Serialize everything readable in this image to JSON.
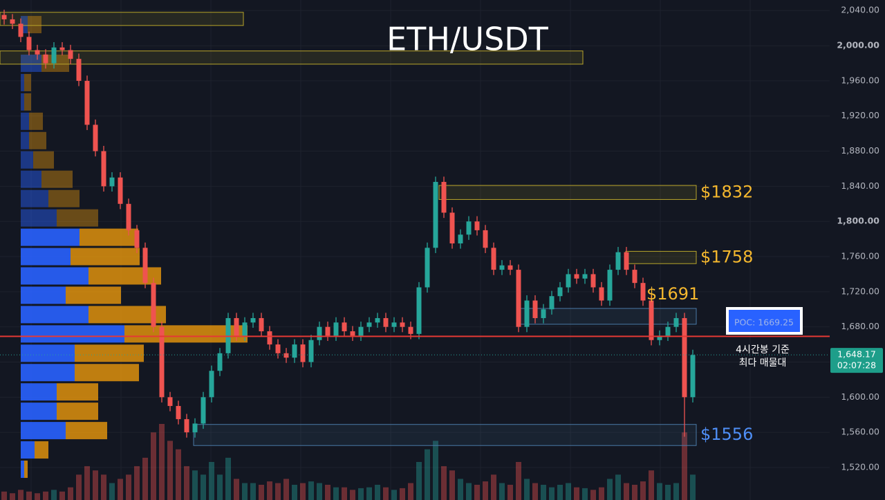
{
  "chart_data": {
    "type": "candlestick",
    "title": "ETH/USDT",
    "ylim": [
      1483,
      2052
    ],
    "yticks": [
      {
        "value": 1520,
        "label": "1,520.00"
      },
      {
        "value": 1560,
        "label": "1,560.00"
      },
      {
        "value": 1600,
        "label": "1,600.00"
      },
      {
        "value": 1640,
        "label": "1,640.00"
      },
      {
        "value": 1680,
        "label": "1,680.00"
      },
      {
        "value": 1720,
        "label": "1,720.00"
      },
      {
        "value": 1760,
        "label": "1,760.00"
      },
      {
        "value": 1800,
        "label": "1,800.00"
      },
      {
        "value": 1840,
        "label": "1,840.00"
      },
      {
        "value": 1880,
        "label": "1,880.00"
      },
      {
        "value": 1920,
        "label": "1,920.00"
      },
      {
        "value": 1960,
        "label": "1,960.00"
      },
      {
        "value": 2000,
        "label": "2,000.00"
      },
      {
        "value": 2040,
        "label": "2,040.00"
      }
    ],
    "grid": true,
    "up_color": "#26a69a",
    "down_color": "#ef5350",
    "open": [
      2035,
      2030,
      2025,
      2010,
      1995,
      1990,
      1980,
      1998,
      1995,
      1985,
      1960,
      1910,
      1880,
      1840,
      1850,
      1820,
      1790,
      1770,
      1730,
      1680,
      1600,
      1590,
      1575,
      1560,
      1570,
      1600,
      1630,
      1650,
      1690,
      1670,
      1685,
      1690,
      1675,
      1660,
      1650,
      1645,
      1660,
      1640,
      1665,
      1680,
      1670,
      1685,
      1675,
      1670,
      1680,
      1685,
      1690,
      1680,
      1685,
      1680,
      1672,
      1725,
      1770,
      1845,
      1810,
      1775,
      1785,
      1800,
      1790,
      1770,
      1745,
      1750,
      1745,
      1680,
      1710,
      1690,
      1700,
      1715,
      1725,
      1740,
      1735,
      1740,
      1725,
      1710,
      1745,
      1765,
      1745,
      1730,
      1710,
      1665,
      1670,
      1680,
      1690,
      1600
    ],
    "high": [
      2041,
      2036,
      2031,
      2016,
      2001,
      1996,
      2004,
      2004,
      2001,
      1991,
      1966,
      1916,
      1886,
      1856,
      1856,
      1826,
      1796,
      1776,
      1736,
      1686,
      1606,
      1596,
      1581,
      1576,
      1606,
      1636,
      1656,
      1696,
      1696,
      1691,
      1696,
      1696,
      1681,
      1666,
      1656,
      1666,
      1666,
      1671,
      1686,
      1686,
      1691,
      1691,
      1681,
      1686,
      1691,
      1696,
      1696,
      1691,
      1691,
      1686,
      1731,
      1776,
      1851,
      1851,
      1816,
      1791,
      1806,
      1806,
      1796,
      1776,
      1756,
      1756,
      1751,
      1716,
      1716,
      1706,
      1721,
      1731,
      1746,
      1746,
      1746,
      1746,
      1731,
      1751,
      1771,
      1771,
      1751,
      1736,
      1716,
      1676,
      1686,
      1696,
      1696,
      1654
    ],
    "low": [
      2024,
      2019,
      2004,
      1989,
      1984,
      1974,
      1974,
      1989,
      1979,
      1954,
      1904,
      1874,
      1834,
      1834,
      1814,
      1784,
      1764,
      1724,
      1674,
      1594,
      1584,
      1569,
      1554,
      1554,
      1564,
      1594,
      1624,
      1644,
      1664,
      1664,
      1679,
      1669,
      1654,
      1644,
      1639,
      1639,
      1634,
      1634,
      1659,
      1664,
      1664,
      1669,
      1664,
      1664,
      1674,
      1679,
      1674,
      1674,
      1674,
      1666,
      1666,
      1719,
      1764,
      1804,
      1769,
      1769,
      1779,
      1784,
      1764,
      1739,
      1739,
      1739,
      1674,
      1674,
      1684,
      1684,
      1694,
      1709,
      1719,
      1729,
      1729,
      1719,
      1704,
      1704,
      1739,
      1739,
      1724,
      1704,
      1659,
      1659,
      1664,
      1674,
      1555,
      1594
    ],
    "close": [
      2030,
      2025,
      2010,
      1995,
      1990,
      1980,
      1998,
      1995,
      1985,
      1960,
      1910,
      1880,
      1840,
      1850,
      1820,
      1790,
      1770,
      1730,
      1680,
      1600,
      1590,
      1575,
      1560,
      1570,
      1600,
      1630,
      1650,
      1690,
      1670,
      1685,
      1690,
      1675,
      1660,
      1650,
      1645,
      1660,
      1640,
      1665,
      1680,
      1670,
      1685,
      1675,
      1670,
      1680,
      1685,
      1690,
      1680,
      1685,
      1680,
      1672,
      1725,
      1770,
      1845,
      1810,
      1775,
      1785,
      1800,
      1790,
      1770,
      1745,
      1750,
      1745,
      1680,
      1710,
      1690,
      1700,
      1715,
      1725,
      1740,
      1735,
      1740,
      1725,
      1710,
      1745,
      1765,
      1745,
      1730,
      1710,
      1665,
      1670,
      1680,
      1690,
      1600,
      1648
    ],
    "volume": [
      10,
      8,
      12,
      10,
      8,
      10,
      12,
      10,
      15,
      30,
      40,
      35,
      30,
      20,
      25,
      30,
      40,
      50,
      80,
      90,
      70,
      60,
      40,
      35,
      30,
      45,
      30,
      50,
      25,
      20,
      20,
      18,
      22,
      20,
      25,
      18,
      20,
      22,
      20,
      18,
      15,
      15,
      12,
      14,
      15,
      18,
      15,
      12,
      14,
      20,
      45,
      60,
      70,
      40,
      35,
      25,
      20,
      18,
      22,
      30,
      20,
      18,
      45,
      25,
      20,
      18,
      15,
      18,
      20,
      15,
      14,
      12,
      15,
      25,
      30,
      20,
      18,
      22,
      35,
      20,
      18,
      20,
      80,
      30
    ],
    "volume_profile": {
      "prices": [
        2024,
        1980,
        1958,
        1936,
        1914,
        1892,
        1870,
        1848,
        1826,
        1804,
        1782,
        1760,
        1738,
        1716,
        1694,
        1672,
        1650,
        1628,
        1606,
        1584,
        1562,
        1540,
        1518
      ],
      "buy": [
        10,
        30,
        5,
        5,
        12,
        12,
        18,
        30,
        40,
        52,
        85,
        72,
        98,
        65,
        98,
        150,
        78,
        78,
        52,
        52,
        65,
        20,
        5
      ],
      "sell": [
        20,
        40,
        10,
        10,
        20,
        25,
        30,
        45,
        45,
        60,
        85,
        100,
        105,
        80,
        112,
        178,
        100,
        93,
        60,
        60,
        60,
        20,
        5
      ],
      "buy_color": "#2962ff",
      "sell_color": "#f59e0b"
    },
    "zones": [
      {
        "low": 2023,
        "high": 2038
      },
      {
        "low": 1979,
        "high": 1994
      },
      {
        "label": "$1832",
        "low": 1825,
        "high": 1841
      },
      {
        "label": "$1758",
        "low": 1752,
        "high": 1766
      },
      {
        "label": "$1691",
        "low": 1683,
        "high": 1701
      },
      {
        "label": "$1556",
        "low": 1545,
        "high": 1569
      }
    ],
    "poc": {
      "value": 1669.25,
      "label": "POC: 1669.25"
    },
    "annotation": [
      "4시간봉 기준",
      "최다 매물대"
    ],
    "current_price": {
      "value": 1648.17,
      "label": "1,648.17"
    },
    "countdown": "02:07:28"
  }
}
